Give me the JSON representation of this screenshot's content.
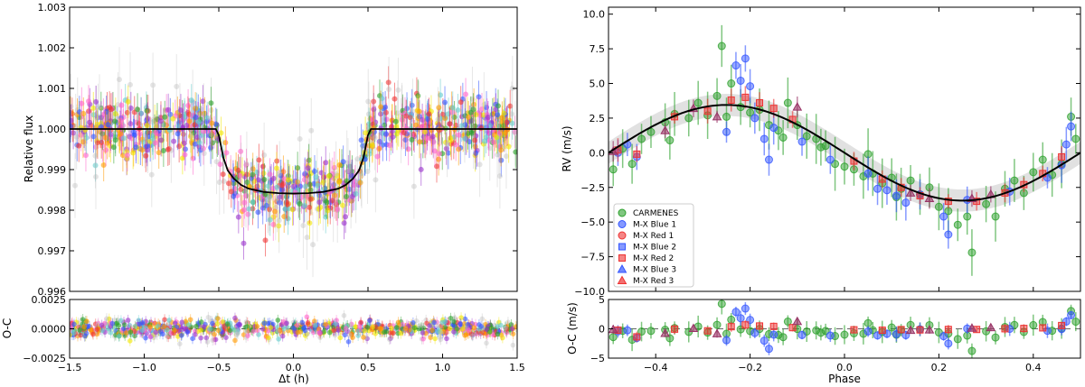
{
  "chart_data": [
    {
      "type": "scatter",
      "title": "",
      "panel": "transit",
      "ylabel": "Relative flux",
      "xlabel": "",
      "xlim": [
        -1.5,
        1.5
      ],
      "ylim": [
        0.996,
        1.003
      ],
      "xticks": [
        -1.5,
        -1.0,
        -0.5,
        0.0,
        0.5,
        1.0,
        1.5
      ],
      "xtick_labels": [
        "−1.5",
        "−1.0",
        "−0.5",
        "0.0",
        "0.5",
        "1.0",
        "1.5"
      ],
      "yticks": [
        0.996,
        0.997,
        0.998,
        0.999,
        1.0,
        1.001,
        1.002,
        1.003
      ],
      "ytick_labels": [
        "0.996",
        "0.997",
        "0.998",
        "0.999",
        "1.000",
        "1.001",
        "1.002",
        "1.003"
      ],
      "model": {
        "name": "transit model",
        "color": "#000000",
        "x": [
          -1.5,
          -0.52,
          -0.5,
          -0.47,
          -0.44,
          -0.4,
          -0.35,
          -0.3,
          -0.2,
          -0.1,
          0.0,
          0.1,
          0.2,
          0.3,
          0.35,
          0.4,
          0.44,
          0.47,
          0.5,
          0.52,
          1.5
        ],
        "y": [
          1.0,
          1.0,
          0.99985,
          0.9993,
          0.99898,
          0.99878,
          0.99862,
          0.99853,
          0.99845,
          0.99842,
          0.99841,
          0.99842,
          0.99845,
          0.99853,
          0.99862,
          0.99878,
          0.99898,
          0.9993,
          0.99985,
          1.0,
          1.0
        ]
      },
      "series_colors": [
        "#bbbbbb",
        "#2ca02c",
        "#3355ff",
        "#ee3333",
        "#ff9900",
        "#f2e600",
        "#9933cc",
        "#ff66cc",
        "#66cccc"
      ],
      "noise_out": 0.00045,
      "noise_in": 0.00045
    },
    {
      "type": "scatter",
      "panel": "transit-residuals",
      "ylabel": "O-C",
      "xlabel": "Δt (h)",
      "xlim": [
        -1.5,
        1.5
      ],
      "ylim": [
        -0.0025,
        0.0025
      ],
      "yticks": [
        -0.0025,
        0.0,
        0.0025
      ],
      "ytick_labels": [
        "−0.0025",
        "0.0000",
        "0.0025"
      ],
      "xticks": [
        -1.5,
        -1.0,
        -0.5,
        0.0,
        0.5,
        1.0,
        1.5
      ],
      "xtick_labels": [
        "−1.5",
        "−1.0",
        "−0.5",
        "0.0",
        "0.5",
        "1.0",
        "1.5"
      ]
    },
    {
      "type": "scatter",
      "panel": "rv",
      "ylabel": "RV (m/s)",
      "xlabel": "",
      "xlim": [
        -0.5,
        0.5
      ],
      "ylim": [
        -10.0,
        10.5
      ],
      "yticks": [
        -10.0,
        -7.5,
        -5.0,
        -2.5,
        0.0,
        2.5,
        5.0,
        7.5,
        10.0
      ],
      "ytick_labels": [
        "−10.0",
        "−7.5",
        "−5.0",
        "−2.5",
        "0.0",
        "2.5",
        "5.0",
        "7.5",
        "10.0"
      ],
      "xticks": [
        -0.4,
        -0.2,
        0.0,
        0.2,
        0.4
      ],
      "model": {
        "name": "RV model",
        "amplitude": 3.45,
        "peak_phase": -0.25,
        "band_halfwidth": 0.8
      },
      "legend": {
        "placement": "lower-left",
        "entries": [
          {
            "label": "CARMENES",
            "marker": "circle",
            "color": "#2ca02c"
          },
          {
            "label": "M-X Blue 1",
            "marker": "circle",
            "color": "#3355ff"
          },
          {
            "label": "M-X Red 1",
            "marker": "circle",
            "color": "#ee3333"
          },
          {
            "label": "M-X Blue 2",
            "marker": "square",
            "color": "#3355ff"
          },
          {
            "label": "M-X Red 2",
            "marker": "square",
            "color": "#ee3333"
          },
          {
            "label": "M-X Blue 3",
            "marker": "triangle",
            "color": "#3355ff"
          },
          {
            "label": "M-X Red 3",
            "marker": "triangle",
            "color": "#ee3333"
          }
        ]
      },
      "carmenes_points": [
        [
          -0.49,
          -1.2
        ],
        [
          -0.47,
          0.3
        ],
        [
          -0.45,
          -0.8
        ],
        [
          -0.43,
          1.0
        ],
        [
          -0.41,
          1.5
        ],
        [
          -0.38,
          2.2
        ],
        [
          -0.36,
          2.8
        ],
        [
          -0.33,
          2.5
        ],
        [
          -0.31,
          3.6
        ],
        [
          -0.29,
          2.7
        ],
        [
          -0.27,
          4.1
        ],
        [
          -0.26,
          7.7
        ],
        [
          -0.25,
          2.6
        ],
        [
          -0.24,
          5.0
        ],
        [
          -0.2,
          2.9
        ],
        [
          -0.18,
          3.1
        ],
        [
          -0.16,
          2.0
        ],
        [
          -0.14,
          1.6
        ],
        [
          -0.12,
          3.6
        ],
        [
          -0.1,
          2.0
        ],
        [
          -0.08,
          1.2
        ],
        [
          -0.06,
          1.0
        ],
        [
          -0.04,
          0.5
        ],
        [
          -0.02,
          -0.8
        ],
        [
          0.0,
          -1.0
        ],
        [
          0.02,
          -1.2
        ],
        [
          0.04,
          -1.7
        ],
        [
          0.06,
          -1.5
        ],
        [
          0.08,
          -2.2
        ],
        [
          0.1,
          -1.8
        ],
        [
          0.12,
          -2.6
        ],
        [
          0.14,
          -2.0
        ],
        [
          0.16,
          -3.0
        ],
        [
          0.18,
          -2.5
        ],
        [
          0.2,
          -3.9
        ],
        [
          0.22,
          -4.2
        ],
        [
          0.24,
          -5.2
        ],
        [
          0.26,
          -4.6
        ],
        [
          0.27,
          -7.2
        ],
        [
          0.3,
          -3.7
        ],
        [
          0.32,
          -4.6
        ],
        [
          0.34,
          -2.6
        ],
        [
          0.36,
          -2.0
        ],
        [
          0.38,
          -2.9
        ],
        [
          0.4,
          -1.4
        ],
        [
          0.42,
          -0.5
        ],
        [
          0.44,
          -1.6
        ],
        [
          0.46,
          -0.8
        ],
        [
          0.48,
          2.6
        ],
        [
          0.49,
          1.0
        ],
        [
          -0.37,
          0.9
        ],
        [
          -0.13,
          1.1
        ],
        [
          -0.22,
          3.3
        ],
        [
          0.11,
          -3.2
        ],
        [
          0.05,
          -0.1
        ],
        [
          -0.05,
          0.4
        ]
      ],
      "blue_points": [
        [
          -0.48,
          0.0
        ],
        [
          -0.46,
          0.6
        ],
        [
          -0.44,
          -0.3
        ],
        [
          -0.23,
          6.3
        ],
        [
          -0.22,
          5.2
        ],
        [
          -0.21,
          6.8
        ],
        [
          -0.2,
          4.8
        ],
        [
          -0.19,
          2.5
        ],
        [
          -0.17,
          1.0
        ],
        [
          -0.16,
          -0.5
        ],
        [
          -0.15,
          1.8
        ],
        [
          -0.09,
          0.8
        ],
        [
          -0.03,
          -0.5
        ],
        [
          0.05,
          -1.5
        ],
        [
          0.07,
          -2.6
        ],
        [
          0.11,
          -3.1
        ],
        [
          0.13,
          -3.6
        ],
        [
          0.16,
          -3.0
        ],
        [
          0.21,
          -4.6
        ],
        [
          0.22,
          -5.9
        ],
        [
          0.26,
          -3.4
        ],
        [
          0.35,
          -2.8
        ],
        [
          0.43,
          -1.8
        ],
        [
          0.47,
          0.6
        ],
        [
          0.48,
          1.9
        ],
        [
          0.46,
          -0.9
        ],
        [
          -0.25,
          1.5
        ],
        [
          0.09,
          -2.7
        ]
      ],
      "red_points": [
        [
          -0.48,
          0.2
        ],
        [
          -0.44,
          -0.1
        ],
        [
          -0.29,
          3.0
        ],
        [
          -0.24,
          3.8
        ],
        [
          -0.21,
          4.0
        ],
        [
          -0.18,
          3.6
        ],
        [
          -0.15,
          3.2
        ],
        [
          -0.11,
          2.4
        ],
        [
          0.02,
          -0.6
        ],
        [
          0.12,
          -2.5
        ],
        [
          0.16,
          -3.1
        ],
        [
          0.22,
          -3.5
        ],
        [
          0.28,
          -3.5
        ],
        [
          0.34,
          -2.9
        ],
        [
          0.38,
          -2.3
        ],
        [
          0.42,
          -1.5
        ],
        [
          0.46,
          -0.3
        ],
        [
          -0.36,
          2.6
        ],
        [
          0.08,
          -1.9
        ]
      ],
      "triangle_points": [
        [
          -0.49,
          0.1
        ],
        [
          -0.38,
          1.6
        ],
        [
          -0.32,
          3.2
        ],
        [
          -0.27,
          2.6
        ],
        [
          -0.1,
          3.3
        ],
        [
          0.14,
          -2.9
        ],
        [
          0.18,
          -3.3
        ],
        [
          0.27,
          -3.3
        ],
        [
          0.31,
          -3.0
        ]
      ]
    },
    {
      "type": "scatter",
      "panel": "rv-residuals",
      "ylabel": "O-C (m/s)",
      "xlabel": "Phase",
      "xlim": [
        -0.5,
        0.5
      ],
      "ylim": [
        -5,
        5
      ],
      "yticks": [
        -5,
        0,
        5
      ],
      "ytick_labels": [
        "−5",
        "0",
        "5"
      ],
      "xticks": [
        -0.4,
        -0.2,
        0.0,
        0.2,
        0.4
      ],
      "xtick_labels": [
        "−0.4",
        "−0.2",
        "0.0",
        "0.2",
        "0.4"
      ]
    }
  ]
}
